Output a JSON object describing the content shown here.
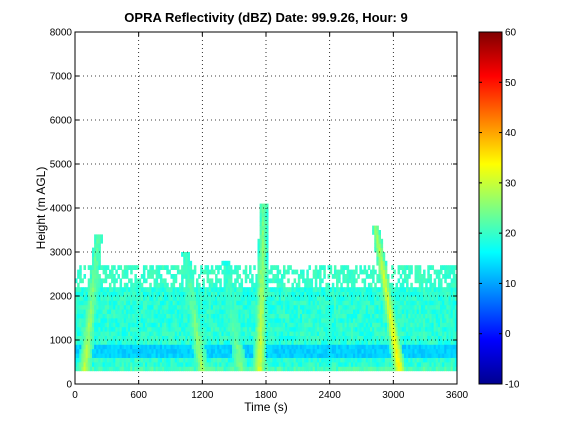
{
  "chart_data": {
    "type": "heatmap",
    "title": "OPRA Reflectivity (dBZ)  Date: 99.9.26, Hour: 9",
    "xlabel": "Time (s)",
    "ylabel": "Height (m AGL)",
    "xlim": [
      0,
      3600
    ],
    "ylim": [
      0,
      8000
    ],
    "xticks": [
      0,
      600,
      1200,
      1800,
      2400,
      3000,
      3600
    ],
    "yticks": [
      0,
      1000,
      2000,
      3000,
      4000,
      5000,
      6000,
      7000,
      8000
    ],
    "grid": true,
    "colorbar": {
      "range": [
        -10,
        60
      ],
      "ticks": [
        -10,
        0,
        10,
        20,
        30,
        40,
        50,
        60
      ],
      "colormap": "jet"
    },
    "field": {
      "description_of_regions": "background echo ~17-22 dBZ from 300 to ~2600 m, band of ~12-15 dBZ near 700-850 m, enhanced fall streaks",
      "echo_base_m": 300,
      "echo_top_m": 2600,
      "low_band_m": [
        650,
        880
      ],
      "low_band_dbz": 13,
      "background_dbz": 19,
      "streaks": [
        {
          "x_top": 220,
          "h_top": 3400,
          "x_bottom": 90,
          "peak_dbz": 30
        },
        {
          "x_top": 1040,
          "h_top": 3000,
          "x_bottom": 1200,
          "peak_dbz": 28
        },
        {
          "x_top": 1420,
          "h_top": 2800,
          "x_bottom": 1560,
          "peak_dbz": 26
        },
        {
          "x_top": 1780,
          "h_top": 4100,
          "x_bottom": 1740,
          "peak_dbz": 32
        },
        {
          "x_top": 2830,
          "h_top": 3600,
          "x_bottom": 3060,
          "peak_dbz": 36
        }
      ]
    }
  }
}
